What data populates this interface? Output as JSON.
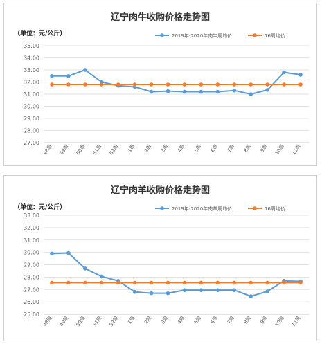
{
  "chart_data": [
    {
      "type": "line",
      "title": "辽宁肉牛收购价格走势图",
      "unit_label": "（单位：元/公斤）",
      "categories": [
        "48周",
        "49周",
        "50周",
        "51周",
        "52周",
        "1周",
        "2周",
        "3周",
        "4周",
        "5周",
        "6周",
        "7周",
        "8周",
        "9周",
        "10周",
        "11周"
      ],
      "ylim": [
        27,
        35
      ],
      "yticks": [
        "35.00",
        "34.00",
        "33.00",
        "32.00",
        "31.00",
        "30.00",
        "29.00",
        "28.00",
        "27.00"
      ],
      "grid": true,
      "legend_position": "top-right",
      "series": [
        {
          "name": "2019年-2020年肉牛周均价",
          "color": "#5B9BD5",
          "values": [
            32.5,
            32.5,
            33.0,
            32.0,
            31.7,
            31.6,
            31.2,
            31.25,
            31.2,
            31.2,
            31.2,
            31.3,
            31.0,
            31.35,
            32.8,
            32.6
          ]
        },
        {
          "name": "16周均价",
          "color": "#ED7D31",
          "values": [
            31.8,
            31.8,
            31.8,
            31.8,
            31.8,
            31.8,
            31.8,
            31.8,
            31.8,
            31.8,
            31.8,
            31.8,
            31.8,
            31.8,
            31.8,
            31.8
          ]
        }
      ]
    },
    {
      "type": "line",
      "title": "辽宁肉羊收购价格走势图",
      "unit_label": "（单位：元/公斤）",
      "categories": [
        "48周",
        "49周",
        "50周",
        "51周",
        "52周",
        "1周",
        "2周",
        "3周",
        "4周",
        "5周",
        "6周",
        "7周",
        "8周",
        "9周",
        "10周",
        "11周"
      ],
      "ylim": [
        25,
        33
      ],
      "yticks": [
        "33.00",
        "32.00",
        "31.00",
        "30.00",
        "29.00",
        "28.00",
        "27.00",
        "26.00",
        "25.00"
      ],
      "grid": true,
      "legend_position": "top-right",
      "series": [
        {
          "name": "2019年-2020年肉羊周均价",
          "color": "#5B9BD5",
          "values": [
            29.9,
            29.95,
            28.7,
            28.05,
            27.7,
            26.8,
            26.7,
            26.7,
            26.95,
            26.95,
            26.95,
            26.95,
            26.45,
            26.85,
            27.7,
            27.65
          ]
        },
        {
          "name": "16周均价",
          "color": "#ED7D31",
          "values": [
            27.55,
            27.55,
            27.55,
            27.55,
            27.55,
            27.55,
            27.55,
            27.55,
            27.55,
            27.55,
            27.55,
            27.55,
            27.55,
            27.55,
            27.55,
            27.55
          ]
        }
      ]
    }
  ]
}
